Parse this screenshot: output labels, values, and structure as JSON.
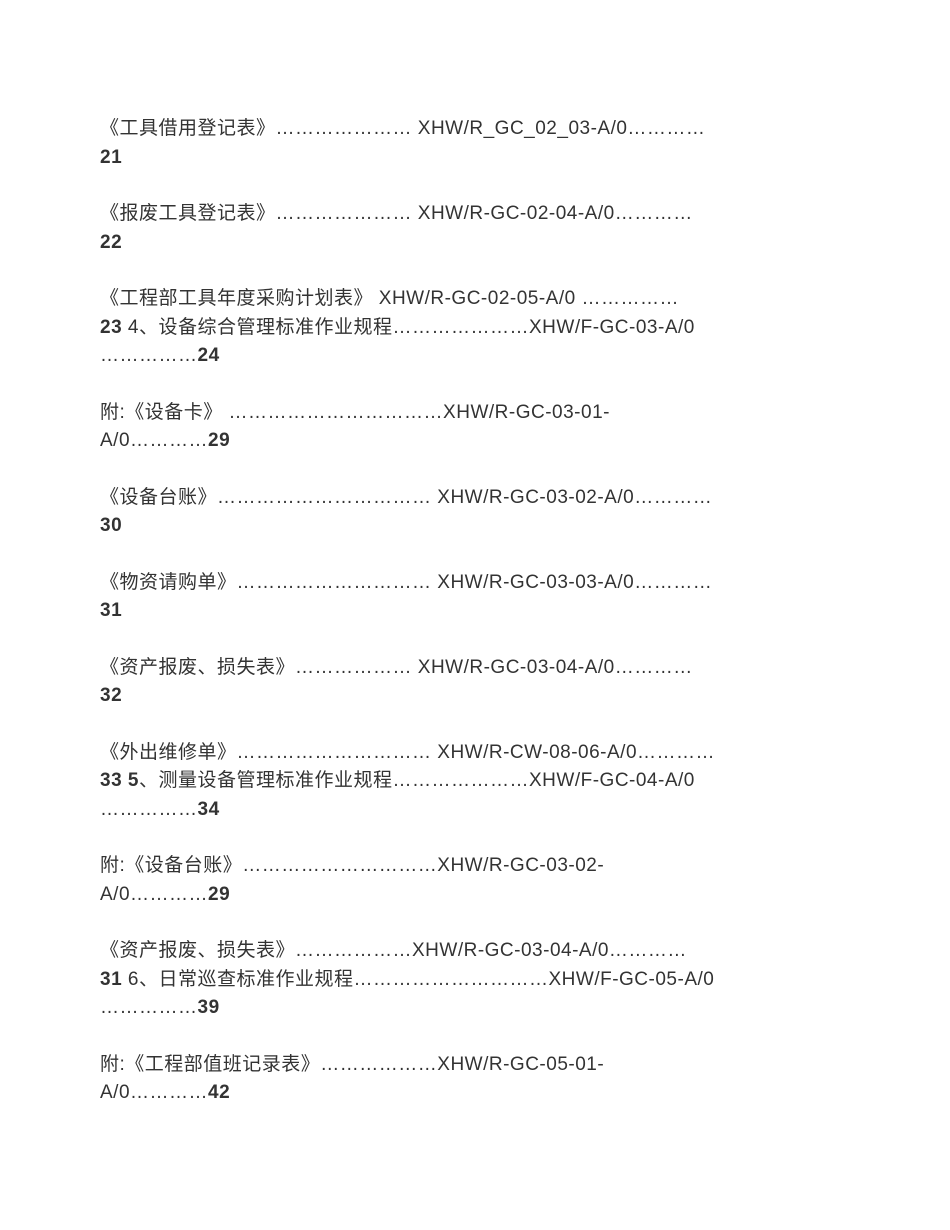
{
  "text_color": "#333333",
  "background_color": "#ffffff",
  "font_size": 19,
  "entries": [
    {
      "line1": "《工具借用登记表》………………… XHW/R_GC_02_03-A/0…………",
      "line2_bold": "21"
    },
    {
      "line1": "《报废工具登记表》………………… XHW/R-GC-02-04-A/0…………",
      "line2_bold": "22"
    },
    {
      "line1": "《工程部工具年度采购计划表》 XHW/R-GC-02-05-A/0 ……………",
      "line2_prefix_bold": "23",
      "line2_rest": " 4、设备综合管理标准作业规程…………………XHW/F-GC-03-A/0",
      "line3_dots": "……………",
      "line3_bold": "24"
    },
    {
      "line1": "附:《设备卡》 ……………………………XHW/R-GC-03-01-",
      "line2_prefix": "A/0…………",
      "line2_bold": "29"
    },
    {
      "line1": "《设备台账》…………………………… XHW/R-GC-03-02-A/0…………",
      "line2_bold": "30"
    },
    {
      "line1": "《物资请购单》………………………… XHW/R-GC-03-03-A/0…………",
      "line2_bold": "31"
    },
    {
      "line1": "《资产报废、损失表》……………… XHW/R-GC-03-04-A/0…………",
      "line2_bold": "32"
    },
    {
      "line1": "《外出维修单》………………………… XHW/R-CW-08-06-A/0…………",
      "line2_prefix_bold": "33",
      "line2_rest": " ",
      "line2_mid_bold": "5",
      "line2_tail": "、测量设备管理标准作业规程…………………XHW/F-GC-04-A/0",
      "line3_dots": "……………",
      "line3_bold": "34"
    },
    {
      "line1": "附:《设备台账》…………………………XHW/R-GC-03-02-",
      "line2_prefix": "A/0…………",
      "line2_bold": "29"
    },
    {
      "line1": "《资产报废、损失表》………………XHW/R-GC-03-04-A/0…………",
      "line2_prefix_bold": "31",
      "line2_rest": " 6、日常巡查标准作业规程…………………………XHW/F-GC-05-A/0",
      "line3_dots": "……………",
      "line3_bold": "39"
    },
    {
      "line1": "附:《工程部值班记录表》………………XHW/R-GC-05-01-",
      "line2_prefix": "A/0…………",
      "line2_bold": "42"
    }
  ]
}
